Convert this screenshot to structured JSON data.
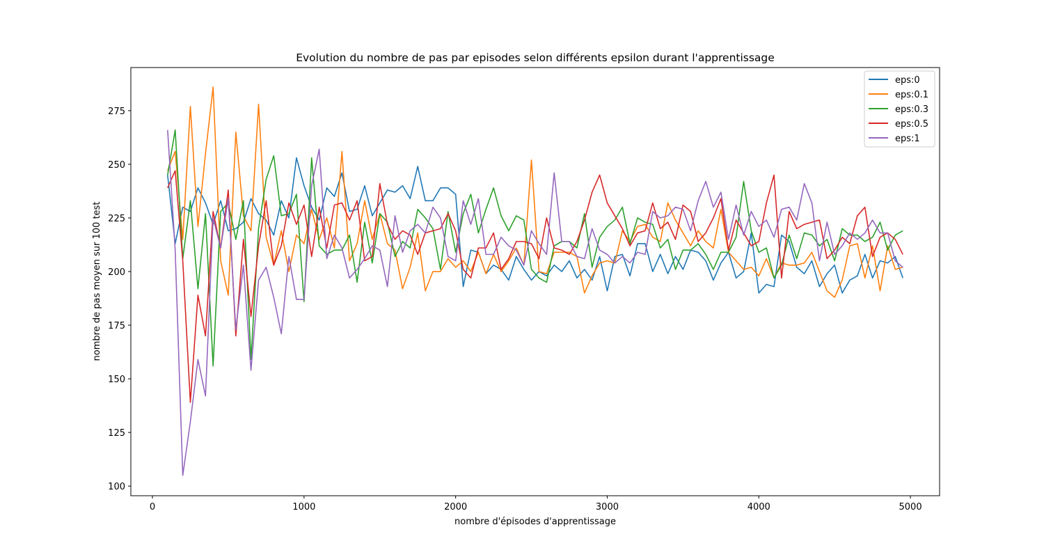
{
  "chart_data": {
    "type": "line",
    "title": "Evolution du nombre de pas par episodes selon différents epsilon durant l'apprentissage",
    "xlabel": "nombre d'épisodes d'apprentissage",
    "ylabel": "nombre de pas moyen sur 100 test",
    "x": [
      100,
      150,
      200,
      250,
      300,
      350,
      400,
      450,
      500,
      550,
      600,
      650,
      700,
      750,
      800,
      850,
      900,
      950,
      1000,
      1050,
      1100,
      1150,
      1200,
      1250,
      1300,
      1350,
      1400,
      1450,
      1500,
      1550,
      1600,
      1650,
      1700,
      1750,
      1800,
      1850,
      1900,
      1950,
      2000,
      2050,
      2100,
      2150,
      2200,
      2250,
      2300,
      2350,
      2400,
      2450,
      2500,
      2550,
      2600,
      2650,
      2700,
      2750,
      2800,
      2850,
      2900,
      2950,
      3000,
      3050,
      3100,
      3150,
      3200,
      3250,
      3300,
      3350,
      3400,
      3450,
      3500,
      3550,
      3600,
      3650,
      3700,
      3750,
      3800,
      3850,
      3900,
      3950,
      4000,
      4050,
      4100,
      4150,
      4200,
      4250,
      4300,
      4350,
      4400,
      4450,
      4500,
      4550,
      4600,
      4650,
      4700,
      4750,
      4800,
      4850,
      4900,
      4950
    ],
    "series": [
      {
        "name": "eps:0",
        "color": "#1f77b4",
        "values": [
          245,
          213,
          230,
          228,
          239,
          232,
          222,
          233,
          219,
          220,
          223,
          234,
          227,
          224,
          217,
          233,
          225,
          253,
          240,
          230,
          224,
          239,
          235,
          246,
          228,
          229,
          240,
          226,
          232,
          238,
          237,
          240,
          234,
          249,
          233,
          233,
          239,
          239,
          236,
          193,
          210,
          209,
          199,
          203,
          201,
          196,
          207,
          201,
          196,
          200,
          198,
          203,
          200,
          205,
          197,
          201,
          196,
          207,
          191,
          207,
          208,
          198,
          213,
          213,
          200,
          208,
          199,
          207,
          201,
          210,
          209,
          205,
          196,
          204,
          209,
          197,
          200,
          218,
          190,
          194,
          193,
          217,
          214,
          202,
          199,
          205,
          193,
          199,
          203,
          190,
          196,
          198,
          208,
          197,
          205,
          204,
          207,
          197
        ]
      },
      {
        "name": "eps:0.1",
        "color": "#ff7f0e",
        "values": [
          247,
          256,
          215,
          277,
          221,
          255,
          286,
          205,
          189,
          265,
          226,
          219,
          278,
          216,
          203,
          219,
          200,
          217,
          213,
          229,
          215,
          225,
          211,
          256,
          205,
          213,
          233,
          215,
          227,
          213,
          210,
          192,
          202,
          218,
          191,
          200,
          200,
          206,
          202,
          205,
          200,
          209,
          199,
          208,
          200,
          205,
          211,
          203,
          252,
          200,
          199,
          209,
          209,
          209,
          207,
          190,
          198,
          204,
          205,
          204,
          219,
          214,
          221,
          222,
          216,
          214,
          232,
          224,
          218,
          212,
          219,
          214,
          211,
          229,
          209,
          205,
          201,
          202,
          198,
          206,
          197,
          204,
          203,
          203,
          204,
          209,
          200,
          191,
          188,
          196,
          212,
          213,
          197,
          212,
          191,
          212,
          201,
          202
        ]
      },
      {
        "name": "eps:0.3",
        "color": "#2ca02c",
        "values": [
          245,
          266,
          206,
          233,
          192,
          227,
          156,
          228,
          232,
          215,
          233,
          159,
          220,
          243,
          254,
          226,
          227,
          236,
          186,
          253,
          212,
          208,
          210,
          210,
          217,
          195,
          223,
          204,
          227,
          223,
          207,
          214,
          211,
          229,
          225,
          220,
          201,
          228,
          209,
          227,
          236,
          218,
          229,
          239,
          226,
          219,
          226,
          224,
          201,
          197,
          195,
          212,
          214,
          214,
          211,
          227,
          202,
          216,
          221,
          224,
          230,
          213,
          225,
          223,
          222,
          211,
          215,
          201,
          210,
          210,
          213,
          208,
          201,
          209,
          209,
          216,
          242,
          219,
          209,
          211,
          197,
          203,
          217,
          206,
          218,
          217,
          212,
          215,
          205,
          220,
          217,
          217,
          214,
          216,
          223,
          210,
          217,
          219
        ]
      },
      {
        "name": "eps:0.5",
        "color": "#d62728",
        "values": [
          239,
          247,
          205,
          139,
          189,
          170,
          228,
          211,
          238,
          170,
          215,
          179,
          212,
          233,
          203,
          212,
          232,
          222,
          231,
          207,
          230,
          211,
          231,
          232,
          224,
          233,
          205,
          207,
          241,
          222,
          215,
          219,
          217,
          208,
          218,
          219,
          220,
          227,
          219,
          201,
          197,
          211,
          211,
          218,
          201,
          206,
          214,
          214,
          213,
          206,
          225,
          211,
          210,
          208,
          214,
          224,
          237,
          245,
          232,
          226,
          220,
          212,
          218,
          219,
          232,
          220,
          223,
          215,
          231,
          228,
          214,
          218,
          225,
          234,
          210,
          224,
          218,
          212,
          214,
          232,
          245,
          197,
          228,
          220,
          222,
          223,
          224,
          206,
          210,
          216,
          213,
          226,
          230,
          207,
          216,
          218,
          215,
          208
        ]
      },
      {
        "name": "eps:1",
        "color": "#9467bd",
        "values": [
          266,
          210,
          105,
          130,
          159,
          142,
          225,
          211,
          234,
          173,
          203,
          154,
          196,
          202,
          188,
          171,
          207,
          187,
          187,
          240,
          257,
          206,
          217,
          211,
          197,
          201,
          206,
          212,
          210,
          193,
          226,
          209,
          219,
          222,
          218,
          230,
          225,
          207,
          205,
          233,
          222,
          234,
          208,
          208,
          216,
          212,
          210,
          203,
          219,
          213,
          208,
          246,
          214,
          214,
          207,
          206,
          220,
          210,
          208,
          204,
          207,
          204,
          209,
          208,
          228,
          225,
          226,
          230,
          229,
          219,
          233,
          242,
          230,
          237,
          215,
          231,
          217,
          228,
          221,
          224,
          216,
          229,
          230,
          224,
          241,
          232,
          205,
          223,
          208,
          212,
          218,
          215,
          218,
          224,
          218,
          218,
          205,
          202
        ]
      }
    ],
    "xlim": [
      -142.5,
      5192.5
    ],
    "ylim": [
      95.5,
      295.1
    ],
    "xticks": [
      0,
      1000,
      2000,
      3000,
      4000,
      5000
    ],
    "yticks": [
      100,
      125,
      150,
      175,
      200,
      225,
      250,
      275
    ],
    "grid": false,
    "legend": "upper right"
  }
}
